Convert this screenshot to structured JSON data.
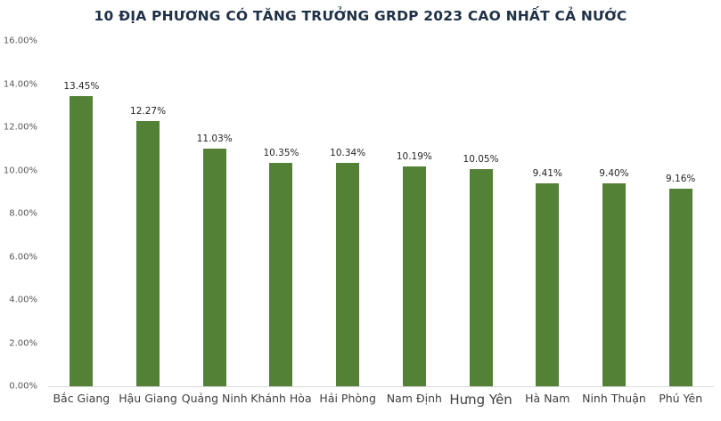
{
  "chart_data": {
    "type": "bar",
    "title": "10 ĐỊA PHƯƠNG CÓ TĂNG TRƯỞNG GRDP 2023 CAO NHẤT CẢ NƯỚC",
    "categories": [
      "Bắc Giang",
      "Hậu Giang",
      "Quảng Ninh",
      "Khánh Hòa",
      "Hải Phòng",
      "Nam Định",
      "Hưng Yên",
      "Hà Nam",
      "Ninh Thuận",
      "Phú Yên"
    ],
    "values": [
      13.45,
      12.27,
      11.03,
      10.35,
      10.34,
      10.19,
      10.05,
      9.41,
      9.4,
      9.16
    ],
    "value_labels": [
      "13.45%",
      "12.27%",
      "11.03%",
      "10.35%",
      "10.34%",
      "10.19%",
      "10.05%",
      "9.41%",
      "9.40%",
      "9.16%"
    ],
    "y_ticks": [
      "16.00%",
      "14.00%",
      "12.00%",
      "10.00%",
      "8.00%",
      "6.00%",
      "4.00%",
      "2.00%",
      "0.00%"
    ],
    "ylim": [
      0,
      16
    ],
    "xlabel": "",
    "ylabel": "",
    "grid": false,
    "legend": false,
    "bar_color": "#538135",
    "title_color": "#1f3147",
    "axis_line_color": "#d9d9d9"
  }
}
